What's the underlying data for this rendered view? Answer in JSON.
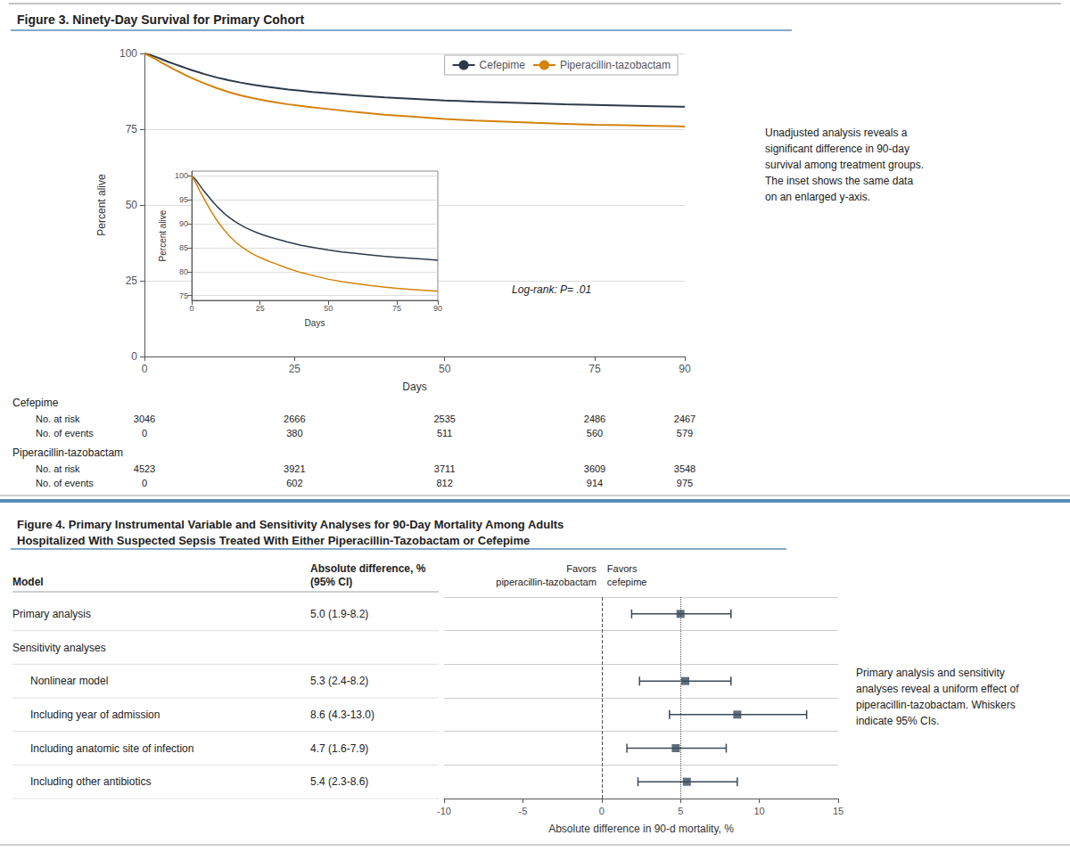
{
  "chart_data": [
    {
      "type": "line",
      "title": "Figure 3. Ninety-Day Survival for Primary Cohort",
      "x": [
        0,
        1,
        2,
        3,
        4,
        5,
        6,
        7,
        8,
        9,
        10,
        12,
        14,
        16,
        18,
        20,
        22,
        24,
        26,
        28,
        30,
        35,
        40,
        45,
        50,
        55,
        60,
        65,
        70,
        75,
        80,
        85,
        90
      ],
      "series": [
        {
          "name": "Cefepime",
          "color": "#2d3a4a",
          "values": [
            100,
            99.5,
            98.8,
            98.0,
            97.2,
            96.5,
            95.8,
            95.1,
            94.4,
            93.8,
            93.2,
            92.1,
            91.2,
            90.4,
            89.7,
            89.1,
            88.6,
            88.1,
            87.7,
            87.3,
            87.0,
            86.2,
            85.5,
            85.0,
            84.5,
            84.1,
            83.8,
            83.5,
            83.2,
            83.0,
            82.8,
            82.6,
            82.4
          ]
        },
        {
          "name": "Piperacillin-tazobactam",
          "color": "#d4820a",
          "values": [
            100,
            99.0,
            98.0,
            96.8,
            95.8,
            94.7,
            93.7,
            92.7,
            91.8,
            90.9,
            90.1,
            88.6,
            87.3,
            86.2,
            85.3,
            84.5,
            83.8,
            83.2,
            82.7,
            82.2,
            81.8,
            80.7,
            79.8,
            79.1,
            78.4,
            77.9,
            77.5,
            77.1,
            76.8,
            76.5,
            76.3,
            76.1,
            75.9
          ]
        }
      ],
      "xlabel": "Days",
      "ylabel": "Percent alive",
      "xlim": [
        0,
        90
      ],
      "xticks": [
        0,
        25,
        50,
        75,
        90
      ],
      "ylim": [
        0,
        100
      ],
      "yticks": [
        0,
        25,
        50,
        75,
        100
      ],
      "grid": true,
      "legend": "upper right",
      "annotation": "Log-rank: P= .01",
      "caption": "Unadjusted analysis reveals a\nsignificant difference in 90-day\nsurvival among treatment groups.\nThe inset shows the same data\non an enlarged y-axis.",
      "inset": {
        "xlabel": "Days",
        "ylabel": "Percent alive",
        "xlim": [
          0,
          90
        ],
        "xticks": [
          0,
          25,
          50,
          75,
          90
        ],
        "ylim": [
          74,
          101
        ],
        "yticks": [
          75,
          80,
          85,
          90,
          95,
          100
        ],
        "grid": true
      },
      "risk_table": {
        "x": [
          0,
          25,
          50,
          75,
          90
        ],
        "row_labels": {
          "at_risk": "No. at risk",
          "events": "No. of events"
        },
        "groups": [
          {
            "name": "Cefepime",
            "at_risk": [
              3046,
              2666,
              2535,
              2486,
              2467
            ],
            "events": [
              0,
              380,
              511,
              560,
              579
            ]
          },
          {
            "name": "Piperacillin-tazobactam",
            "at_risk": [
              4523,
              3921,
              3711,
              3609,
              3548
            ],
            "events": [
              0,
              602,
              812,
              914,
              975
            ]
          }
        ]
      }
    },
    {
      "type": "forest",
      "title": "Figure 4. Primary Instrumental Variable and Sensitivity Analyses for 90-Day Mortality Among Adults\nHospitalized With Suspected Sepsis Treated With Either Piperacillin-Tazobactam or Cefepime",
      "categories": [
        "Primary analysis",
        "Sensitivity analyses",
        "Nonlinear model",
        "Including year of admission",
        "Including anatomic site of infection",
        "Including other antibiotics"
      ],
      "values": [
        5.0,
        null,
        5.3,
        8.6,
        4.7,
        5.4
      ],
      "value_labels": [
        "5.0 (1.9-8.2)",
        null,
        "5.3 (2.4-8.2)",
        "8.6 (4.3-13.0)",
        "4.7 (1.6-7.9)",
        "5.4 (2.3-8.6)"
      ],
      "ci_low": [
        1.9,
        null,
        2.4,
        4.3,
        1.6,
        2.3
      ],
      "ci_high": [
        8.2,
        null,
        8.2,
        13.0,
        7.9,
        8.6
      ],
      "column_headers": [
        "Model",
        "Absolute difference, %\n(95% CI)"
      ],
      "favors": [
        "Favors\npiperacillin-tazobactam",
        "Favors\ncefepime"
      ],
      "xlabel": "Absolute difference in 90-d mortality, %",
      "xlim": [
        -10,
        15
      ],
      "xticks": [
        -10,
        -5,
        0,
        5,
        10,
        15
      ],
      "reference_lines": [
        {
          "value": 0,
          "line_style": "dashed"
        },
        {
          "value": 5,
          "line_style": "dotted"
        }
      ],
      "color": "#3a4a5a",
      "marker": "square",
      "caption": "Primary analysis and sensitivity\nanalyses reveal a uniform effect of\npiperacillin-tazobactam. Whiskers\nindicate 95% CIs."
    }
  ]
}
